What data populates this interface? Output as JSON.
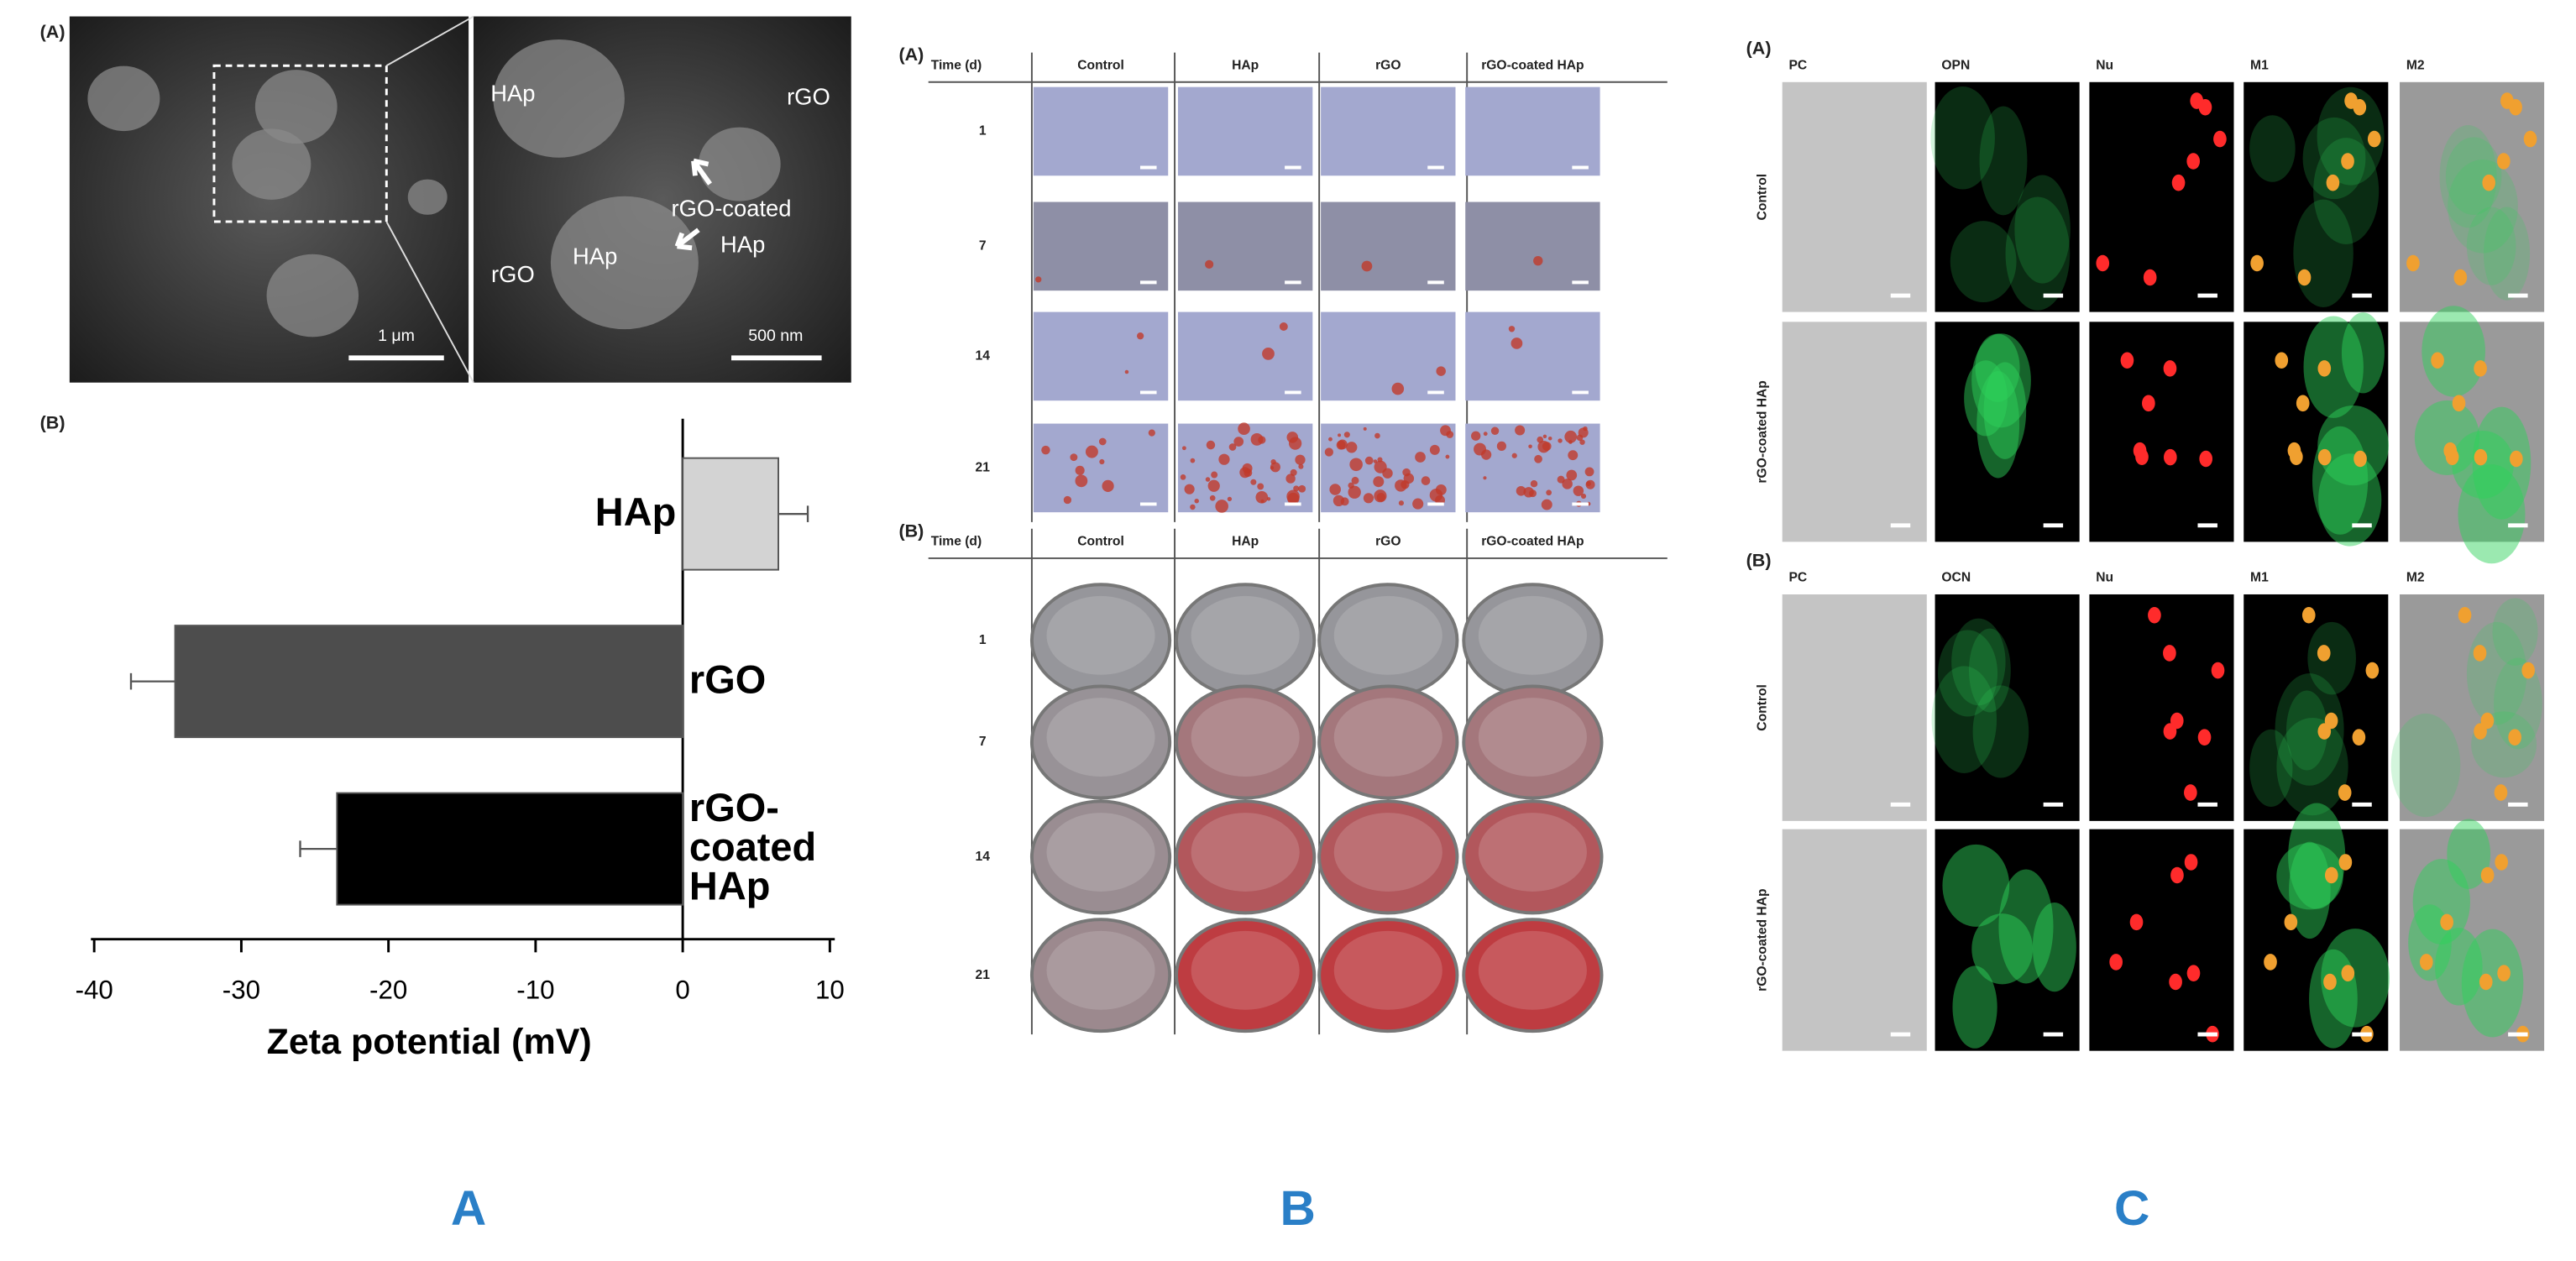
{
  "panel_a": {
    "label": "(A)",
    "sem_labels": [
      "HAp",
      "rGO",
      "rGO-coated",
      "HAp",
      "rGO",
      "HAp"
    ],
    "scale_bars": [
      "1 μm",
      "500 nm"
    ],
    "chart_label": "(B)"
  },
  "chart_data": {
    "type": "bar",
    "orientation": "horizontal",
    "categories": [
      "HAp",
      "rGO",
      "rGO-coated HAp"
    ],
    "values": [
      6.5,
      -34.5,
      -23.5
    ],
    "errors": [
      2,
      3,
      2.5
    ],
    "colors": [
      "#d3d3d3",
      "#4d4d4d",
      "#000000"
    ],
    "xlabel": "Zeta potential (mV)",
    "xlim": [
      -40,
      10
    ],
    "xticks": [
      -40,
      -30,
      -20,
      -10,
      0,
      10
    ]
  },
  "panel_b": {
    "sections": [
      {
        "label": "(A)",
        "header": "Time (d)",
        "columns": [
          "Control",
          "HAp",
          "rGO",
          "rGO-coated  HAp"
        ],
        "rows": [
          "1",
          "7",
          "14",
          "21"
        ]
      },
      {
        "label": "(B)",
        "header": "Time (d)",
        "columns": [
          "Control",
          "HAp",
          "rGO",
          "rGO-coated  HAp"
        ],
        "rows": [
          "1",
          "7",
          "14",
          "21"
        ]
      }
    ]
  },
  "panel_c": {
    "sections": [
      {
        "label": "(A)",
        "columns": [
          "PC",
          "OPN",
          "Nu",
          "M1",
          "M2"
        ],
        "rows": [
          "Control",
          "rGO-coated HAp"
        ]
      },
      {
        "label": "(B)",
        "columns": [
          "PC",
          "OCN",
          "Nu",
          "M1",
          "M2"
        ],
        "rows": [
          "Control",
          "rGO-coated HAp"
        ]
      }
    ]
  },
  "captions": [
    "A",
    "B",
    "C"
  ]
}
